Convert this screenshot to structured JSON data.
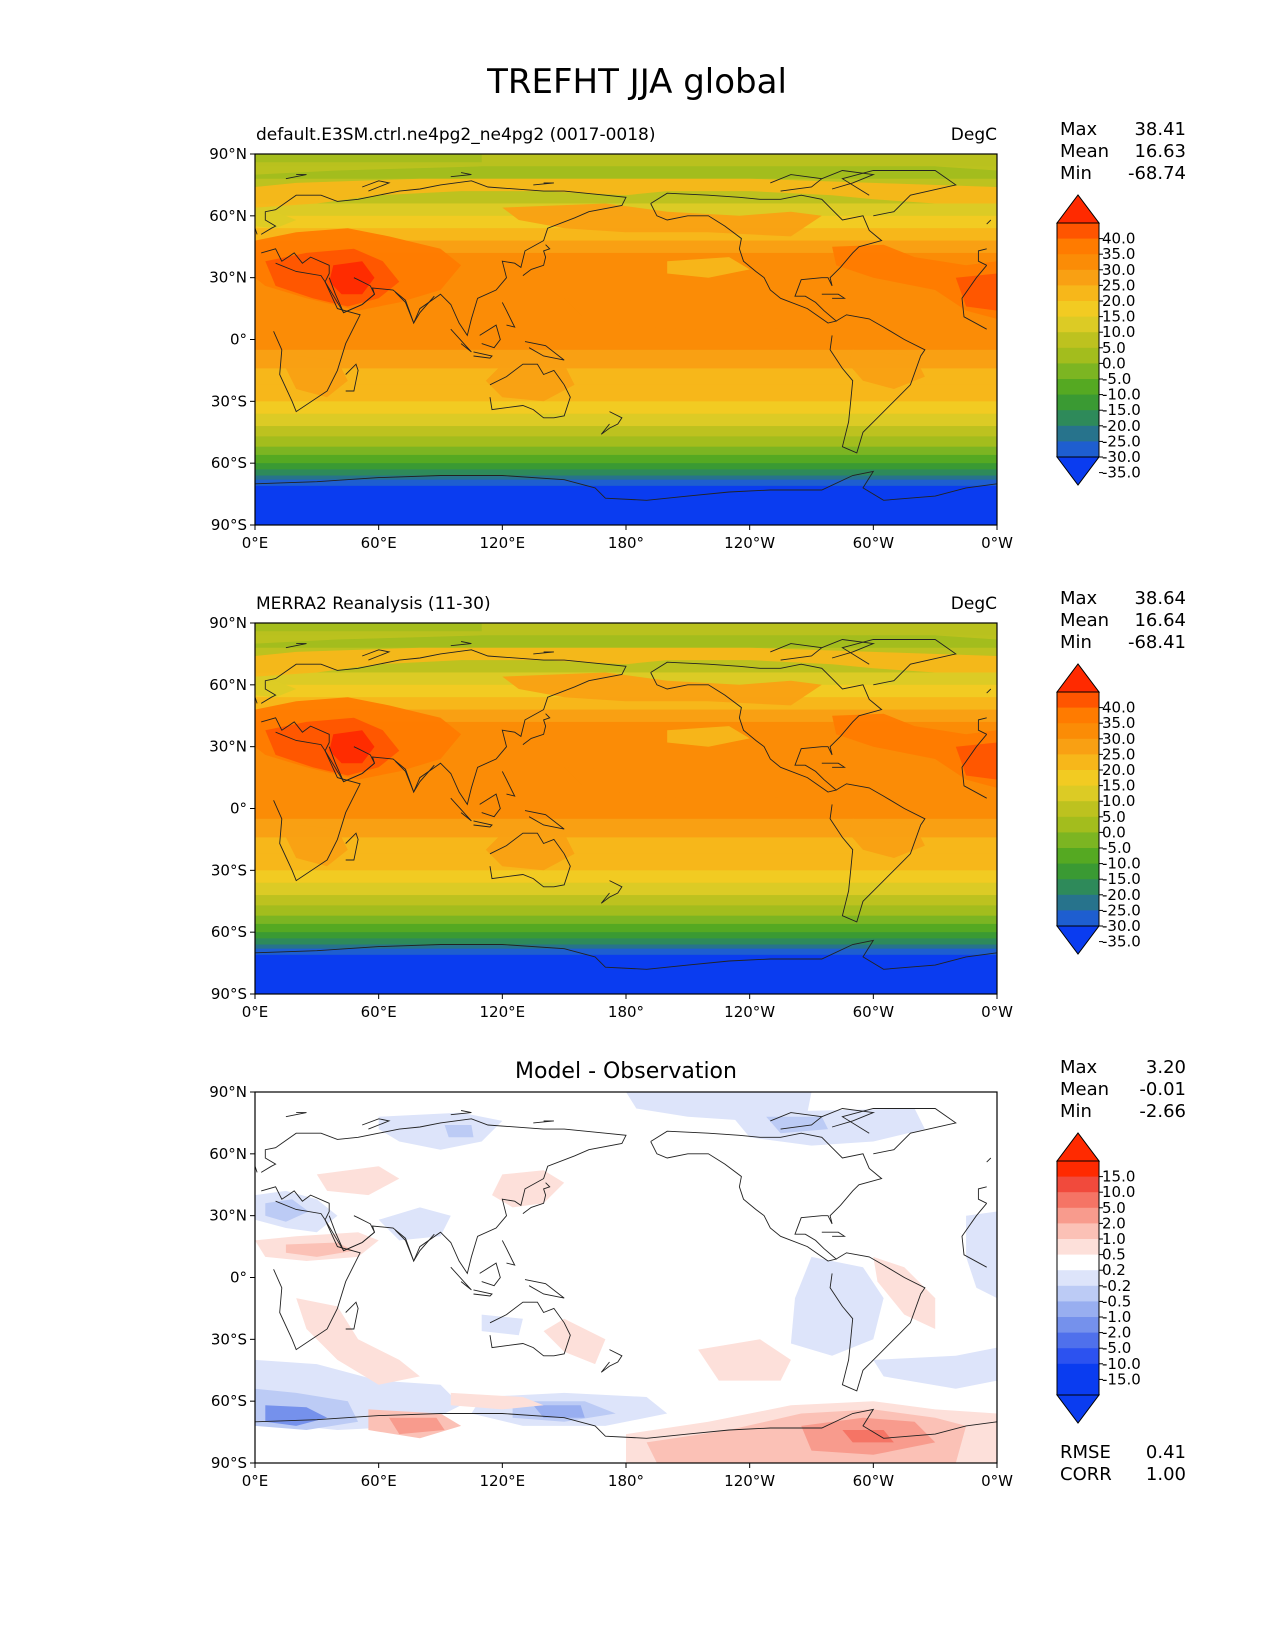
{
  "figure": {
    "title": "TREFHT JJA global"
  },
  "axes": {
    "lat_ticks": [
      "90°N",
      "60°N",
      "30°N",
      "0°",
      "30°S",
      "60°S",
      "90°S"
    ],
    "lon_ticks": [
      "0°E",
      "60°E",
      "120°E",
      "180°",
      "120°W",
      "60°W",
      "0°W"
    ]
  },
  "panels": [
    {
      "id": "model",
      "title": "default.E3SM.ctrl.ne4pg2_ne4pg2 (0017-0018)",
      "units": "DegC",
      "stats": {
        "max_label": "Max",
        "max": "38.41",
        "mean_label": "Mean",
        "mean": "16.63",
        "min_label": "Min",
        "min": "-68.74"
      },
      "colorbar_labels": [
        "40.0",
        "35.0",
        "30.0",
        "25.0",
        "20.0",
        "15.0",
        "10.0",
        "5.0",
        "0.0",
        "-5.0",
        "-10.0",
        "-15.0",
        "-20.0",
        "-25.0",
        "-30.0",
        "-35.0"
      ]
    },
    {
      "id": "obs",
      "title": "MERRA2 Reanalysis (11-30)",
      "units": "DegC",
      "stats": {
        "max_label": "Max",
        "max": "38.64",
        "mean_label": "Mean",
        "mean": "16.64",
        "min_label": "Min",
        "min": "-68.41"
      },
      "colorbar_labels": [
        "40.0",
        "35.0",
        "30.0",
        "25.0",
        "20.0",
        "15.0",
        "10.0",
        "5.0",
        "0.0",
        "-5.0",
        "-10.0",
        "-15.0",
        "-20.0",
        "-25.0",
        "-30.0",
        "-35.0"
      ]
    },
    {
      "id": "diff",
      "title": "Model - Observation",
      "units": "",
      "stats": {
        "max_label": "Max",
        "max": "3.20",
        "mean_label": "Mean",
        "mean": "-0.01",
        "min_label": "Min",
        "min": "-2.66"
      },
      "colorbar_labels": [
        "15.0",
        "10.0",
        "5.0",
        "2.0",
        "1.0",
        "0.5",
        "0.2",
        "-0.2",
        "-0.5",
        "-1.0",
        "-2.0",
        "-5.0",
        "-10.0",
        "-15.0"
      ],
      "metrics": {
        "rmse_label": "RMSE",
        "rmse": "0.41",
        "corr_label": "CORR",
        "corr": "1.00"
      }
    }
  ],
  "colors": {
    "temperature_scale": [
      "#ff2a00",
      "#ff5500",
      "#ff7b00",
      "#fb8c06",
      "#f9a013",
      "#f7b71a",
      "#f2cb22",
      "#dccb25",
      "#bdc21f",
      "#a3bd1d",
      "#7cb522",
      "#55a922",
      "#3a9a33",
      "#2e8a5a",
      "#27738c",
      "#1e5ed0",
      "#0a3cf0"
    ],
    "difference_scale": [
      "#ff2a00",
      "#f14a3c",
      "#f57465",
      "#f89b8d",
      "#fbc1b6",
      "#fde0da",
      "#ffffff",
      "#dde4fa",
      "#bccbf5",
      "#98aef0",
      "#7591ec",
      "#4f70ec",
      "#2c52f0",
      "#0a3cf0"
    ]
  }
}
